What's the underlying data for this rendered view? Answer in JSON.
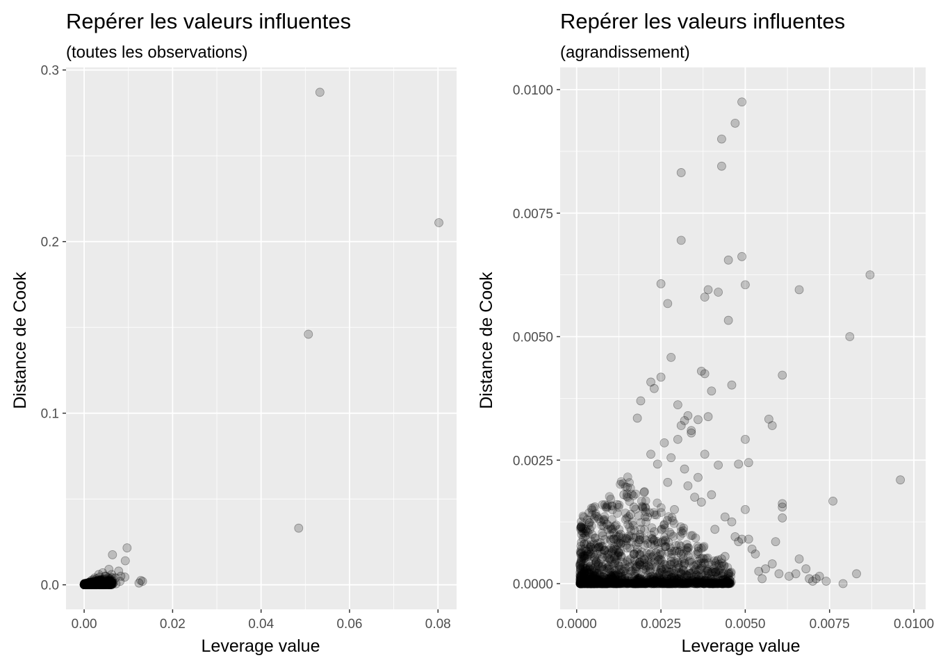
{
  "chart_data": [
    {
      "type": "scatter",
      "title": "Repérer les valeurs influentes",
      "subtitle": "(toutes les observations)",
      "xlabel": "Leverage value",
      "ylabel": "Distance de Cook",
      "xlim": [
        -0.0041,
        0.0842
      ],
      "ylim": [
        -0.0143,
        0.3015
      ],
      "x_ticks": [
        0.0,
        0.02,
        0.04,
        0.06,
        0.08
      ],
      "x_tick_labels": [
        "0.00",
        "0.02",
        "0.04",
        "0.06",
        "0.08"
      ],
      "y_ticks": [
        0.0,
        0.1,
        0.2,
        0.3
      ],
      "y_tick_labels": [
        "0.0",
        "0.1",
        "0.2",
        "0.3"
      ],
      "grid": true,
      "point_color": "#000000",
      "point_alpha": 0.2,
      "panel_background": "#EBEBEB",
      "grid_color": "#FFFFFF",
      "x": [
        0.0533,
        0.0802,
        0.0507,
        0.0485,
        0.0097,
        0.0093,
        0.0064,
        0.0092,
        0.0132,
        0.0124,
        0.0128,
        0.0078,
        0.0081,
        0.0056,
        0.0083,
        0.0071,
        0.0062,
        0.0049,
        0.0042,
        0.0038,
        0.0035,
        0.0031,
        0.0028,
        0.0025,
        0.0022,
        0.0019,
        0.0016,
        0.0014,
        0.0012,
        0.001,
        0.0008,
        0.0006,
        0.0005,
        0.0004,
        0.0003,
        0.0011,
        0.0018,
        0.0024,
        0.0029,
        0.0033,
        0.0037,
        0.0044,
        0.0048,
        0.0053,
        0.0058,
        0.0061,
        0.0066,
        0.0072,
        0.0027,
        0.0036,
        0.0045,
        0.0051,
        0.004,
        0.0047,
        0.002,
        0.0015
      ],
      "y": [
        0.287,
        0.211,
        0.146,
        0.033,
        0.0215,
        0.014,
        0.0175,
        0.0045,
        0.002,
        0.001,
        0.0025,
        0.008,
        0.002,
        0.009,
        0.005,
        0.004,
        0.006,
        0.005,
        0.007,
        0.003,
        0.0045,
        0.0025,
        0.0035,
        0.002,
        0.003,
        0.0018,
        0.0012,
        0.002,
        0.001,
        0.0008,
        0.0005,
        0.0004,
        0.0003,
        0.0002,
        0.0001,
        0.0015,
        0.0028,
        0.004,
        0.001,
        0.006,
        0.0015,
        0.003,
        0.0012,
        0.002,
        0.0008,
        0.0016,
        0.001,
        0.0006,
        0.0005,
        0.0008,
        0.0004,
        0.0003,
        0.0022,
        0.005,
        0.0006,
        0.0004
      ]
    },
    {
      "type": "scatter",
      "title": "Repérer les valeurs influentes",
      "subtitle": "(agrandissement)",
      "xlabel": "Leverage value",
      "ylabel": "Distance de Cook",
      "xlim": [
        -0.00049,
        0.01035
      ],
      "ylim": [
        -0.00052,
        0.01045
      ],
      "x_ticks": [
        0.0,
        0.0025,
        0.005,
        0.0075,
        0.01
      ],
      "x_tick_labels": [
        "0.0000",
        "0.0025",
        "0.0050",
        "0.0075",
        "0.0100"
      ],
      "y_ticks": [
        0.0,
        0.0025,
        0.005,
        0.0075,
        0.01
      ],
      "y_tick_labels": [
        "0.0000",
        "0.0025",
        "0.0050",
        "0.0075",
        "0.0100"
      ],
      "grid": true,
      "point_color": "#000000",
      "point_alpha": 0.2,
      "panel_background": "#EBEBEB",
      "grid_color": "#FFFFFF",
      "x": [
        0.0049,
        0.0047,
        0.0043,
        0.0043,
        0.0031,
        0.0031,
        0.0049,
        0.0045,
        0.005,
        0.0025,
        0.0039,
        0.0042,
        0.0038,
        0.0027,
        0.0045,
        0.0066,
        0.0087,
        0.0081,
        0.0061,
        0.0037,
        0.0038,
        0.0046,
        0.0028,
        0.0025,
        0.003,
        0.0022,
        0.0023,
        0.004,
        0.0018,
        0.0019,
        0.0032,
        0.0033,
        0.0031,
        0.0034,
        0.0036,
        0.0039,
        0.0057,
        0.0058,
        0.005,
        0.0048,
        0.0051,
        0.0096,
        0.0076,
        0.0061,
        0.0061,
        0.0061,
        0.0059,
        0.0083,
        0.0072,
        0.0068,
        0.0065,
        0.0066,
        0.0071,
        0.007,
        0.006,
        0.0058,
        0.0056,
        0.0055,
        0.0053,
        0.0051,
        0.005,
        0.0048,
        0.0046,
        0.0044,
        0.0042,
        0.004,
        0.0038,
        0.0036,
        0.0034,
        0.0032,
        0.003,
        0.0028,
        0.0026,
        0.0024,
        0.0022,
        0.002,
        0.0015,
        0.0012,
        0.0009,
        0.0016,
        0.0023,
        0.0029,
        0.0035,
        0.0041,
        0.0047,
        0.0052,
        0.0027,
        0.0033,
        0.0037,
        0.0044,
        0.0049,
        0.0026,
        0.0021,
        0.0017,
        0.0014,
        0.0019,
        0.0024,
        0.0031,
        0.0036,
        0.0043,
        0.0054,
        0.0063,
        0.0069,
        0.0074,
        0.0079,
        0.0011,
        0.0013,
        0.0018,
        0.0022,
        0.0028,
        0.0032,
        0.0039,
        0.0045,
        0.002,
        0.0017,
        0.0025
      ],
      "y": [
        0.00975,
        0.00932,
        0.009,
        0.00845,
        0.00832,
        0.00695,
        0.00662,
        0.00655,
        0.00605,
        0.00607,
        0.00595,
        0.0059,
        0.0058,
        0.00567,
        0.00533,
        0.00595,
        0.00625,
        0.005,
        0.00422,
        0.0043,
        0.00425,
        0.00402,
        0.00458,
        0.00418,
        0.00362,
        0.00408,
        0.00395,
        0.0039,
        0.00335,
        0.0037,
        0.0033,
        0.0034,
        0.0032,
        0.0031,
        0.00332,
        0.00338,
        0.00333,
        0.0032,
        0.00292,
        0.00242,
        0.00245,
        0.0021,
        0.00167,
        0.00162,
        0.00133,
        0.00155,
        0.00085,
        0.0002,
        0.00015,
        0.0003,
        0.0002,
        0.0005,
        0.0001,
        5e-05,
        0.0002,
        0.0004,
        0.0003,
        0.0001,
        0.0006,
        0.0009,
        0.0015,
        0.00085,
        0.00125,
        0.00055,
        0.0024,
        0.0018,
        0.00262,
        0.00215,
        0.00305,
        0.00232,
        0.00292,
        0.00255,
        0.00285,
        0.00242,
        0.00262,
        0.00185,
        0.00195,
        0.0016,
        0.0012,
        0.0014,
        0.00105,
        0.0015,
        0.00175,
        0.0011,
        0.00095,
        0.0007,
        0.00205,
        0.00198,
        0.00165,
        0.00135,
        0.0009,
        0.0012,
        0.00135,
        0.00155,
        0.0018,
        0.0011,
        0.00085,
        0.0006,
        0.00065,
        0.0005,
        0.00025,
        0.00015,
        0.0001,
        5e-05,
        0.0,
        0.0009,
        0.001,
        0.0007,
        0.0008,
        0.00045,
        0.0004,
        0.00025,
        0.00015,
        0.0005,
        0.0006,
        0.0003
      ]
    }
  ]
}
